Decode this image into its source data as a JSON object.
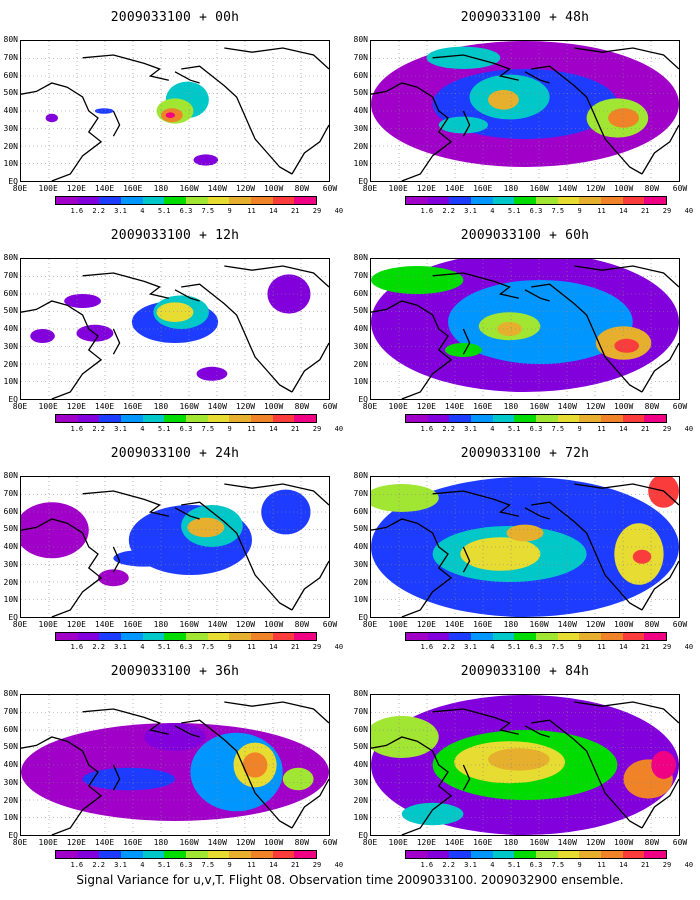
{
  "panels": [
    {
      "title": "2009033100 + 00h",
      "key": "h00"
    },
    {
      "title": "2009033100 + 48h",
      "key": "h48"
    },
    {
      "title": "2009033100 + 12h",
      "key": "h12"
    },
    {
      "title": "2009033100 + 60h",
      "key": "h60"
    },
    {
      "title": "2009033100 + 24h",
      "key": "h24"
    },
    {
      "title": "2009033100 + 72h",
      "key": "h72"
    },
    {
      "title": "2009033100 + 36h",
      "key": "h36"
    },
    {
      "title": "2009033100 + 84h",
      "key": "h84"
    }
  ],
  "lat_labels": [
    "80N",
    "70N",
    "60N",
    "50N",
    "40N",
    "30N",
    "20N",
    "10N",
    "EQ"
  ],
  "lon_labels": [
    "80E",
    "100E",
    "120E",
    "140E",
    "160E",
    "180",
    "160W",
    "140W",
    "120W",
    "100W",
    "80W",
    "60W"
  ],
  "colorbar": {
    "labels": [
      "1.6",
      "2.2",
      "3.1",
      "4",
      "5.1",
      "6.3",
      "7.5",
      "9",
      "11",
      "14",
      "21",
      "29",
      "40"
    ],
    "colors": [
      "#a000c8",
      "#8200dc",
      "#1e3cff",
      "#0096ff",
      "#00c8c8",
      "#00dc00",
      "#a0e632",
      "#e6dc32",
      "#e6af2d",
      "#f08228",
      "#fa3c3c",
      "#f00082"
    ]
  },
  "footer": "Signal Variance for u,v,T. Flight 08. Observation time 2009033100. 2009032900 ensemble."
}
